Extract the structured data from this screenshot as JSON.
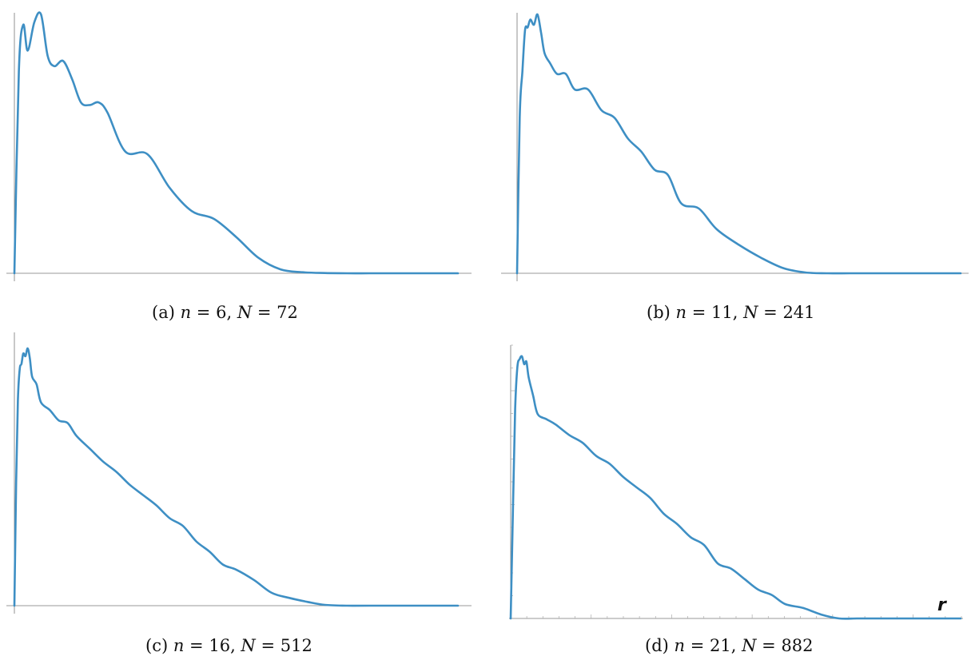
{
  "chart_data": [
    {
      "type": "line",
      "panel_label": "(a)",
      "n": "6",
      "N": "72",
      "x": [
        0.0,
        0.01,
        0.02,
        0.03,
        0.045,
        0.06,
        0.075,
        0.09,
        0.11,
        0.13,
        0.15,
        0.17,
        0.19,
        0.21,
        0.25,
        0.3,
        0.35,
        0.4,
        0.45,
        0.5,
        0.55,
        0.6,
        0.65,
        0.7,
        0.75,
        0.8,
        0.85,
        0.9,
        0.95,
        1.0
      ],
      "values": [
        0.0,
        0.78,
        0.96,
        0.86,
        0.97,
        1.0,
        0.84,
        0.8,
        0.82,
        0.75,
        0.66,
        0.65,
        0.66,
        0.62,
        0.47,
        0.46,
        0.33,
        0.24,
        0.21,
        0.14,
        0.06,
        0.015,
        0.004,
        0.001,
        0.0,
        0.0,
        0.0,
        0.0,
        0.0,
        0.0
      ],
      "xlabel": "",
      "ylabel": ""
    },
    {
      "type": "line",
      "panel_label": "(b)",
      "n": "11",
      "N": "241",
      "x": [
        0.0,
        0.006,
        0.012,
        0.018,
        0.024,
        0.03,
        0.038,
        0.046,
        0.054,
        0.062,
        0.075,
        0.09,
        0.11,
        0.13,
        0.16,
        0.19,
        0.22,
        0.25,
        0.28,
        0.31,
        0.34,
        0.37,
        0.41,
        0.45,
        0.5,
        0.55,
        0.6,
        0.65,
        0.7,
        0.75,
        0.8,
        1.0
      ],
      "values": [
        0.0,
        0.6,
        0.78,
        0.94,
        0.95,
        0.98,
        0.96,
        1.0,
        0.93,
        0.85,
        0.81,
        0.77,
        0.77,
        0.71,
        0.71,
        0.63,
        0.6,
        0.52,
        0.47,
        0.4,
        0.38,
        0.27,
        0.25,
        0.17,
        0.11,
        0.06,
        0.02,
        0.003,
        0.0,
        0.0,
        0.0,
        0.0
      ],
      "xlabel": "",
      "ylabel": ""
    },
    {
      "type": "line",
      "panel_label": "(c)",
      "n": "16",
      "N": "512",
      "x": [
        0.0,
        0.004,
        0.008,
        0.012,
        0.016,
        0.02,
        0.025,
        0.03,
        0.035,
        0.04,
        0.05,
        0.06,
        0.08,
        0.1,
        0.12,
        0.14,
        0.17,
        0.2,
        0.23,
        0.26,
        0.29,
        0.32,
        0.35,
        0.38,
        0.41,
        0.44,
        0.47,
        0.5,
        0.54,
        0.58,
        0.62,
        0.66,
        0.7,
        0.75,
        0.8,
        1.0
      ],
      "values": [
        0.0,
        0.48,
        0.8,
        0.92,
        0.94,
        0.98,
        0.97,
        1.0,
        0.96,
        0.89,
        0.86,
        0.79,
        0.76,
        0.72,
        0.71,
        0.66,
        0.61,
        0.56,
        0.52,
        0.47,
        0.43,
        0.39,
        0.34,
        0.31,
        0.25,
        0.21,
        0.16,
        0.14,
        0.1,
        0.05,
        0.03,
        0.015,
        0.003,
        0.0,
        0.0,
        0.0
      ],
      "xlabel": "",
      "ylabel": ""
    },
    {
      "type": "line",
      "panel_label": "(d)",
      "n": "21",
      "N": "882",
      "x": [
        0.0,
        0.005,
        0.01,
        0.015,
        0.02,
        0.025,
        0.03,
        0.035,
        0.04,
        0.05,
        0.06,
        0.08,
        0.1,
        0.13,
        0.16,
        0.19,
        0.22,
        0.25,
        0.28,
        0.31,
        0.34,
        0.37,
        0.4,
        0.43,
        0.46,
        0.49,
        0.52,
        0.55,
        0.58,
        0.61,
        0.65,
        0.69,
        0.73,
        0.77,
        0.81,
        0.85,
        1.0
      ],
      "values": [
        0.0,
        0.41,
        0.8,
        0.96,
        0.99,
        1.0,
        0.97,
        0.98,
        0.92,
        0.85,
        0.78,
        0.76,
        0.74,
        0.7,
        0.67,
        0.62,
        0.59,
        0.54,
        0.5,
        0.46,
        0.4,
        0.36,
        0.31,
        0.28,
        0.21,
        0.19,
        0.15,
        0.11,
        0.09,
        0.055,
        0.04,
        0.015,
        0.0,
        0.0,
        0.0,
        0.0,
        0.0
      ],
      "xlabel": "r",
      "ylabel": ""
    }
  ],
  "colors": {
    "curve": "#3e8fc4",
    "axis": "#777777"
  }
}
